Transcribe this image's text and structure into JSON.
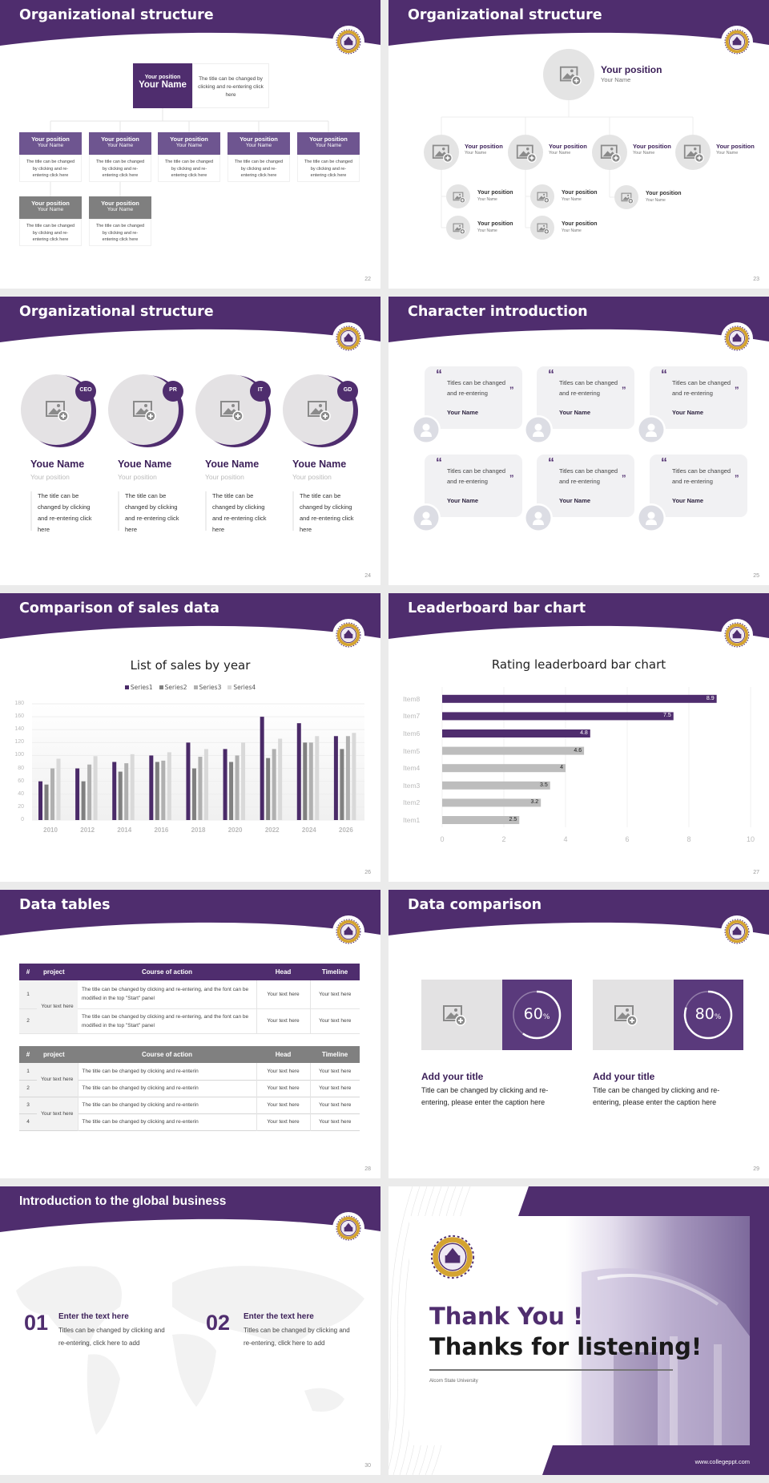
{
  "colors": {
    "purple": "#4f2d6e",
    "dark_purple": "#3b1f58",
    "gray_header": "#808080",
    "series": [
      "#4a2a68",
      "#808080",
      "#b0b0b0",
      "#d9d9d9"
    ]
  },
  "s22": {
    "title": "Organizational structure",
    "page": "22",
    "top": {
      "position": "Your position",
      "name": "Your Name",
      "desc": "The title can be changed by clicking and re-entering click here"
    },
    "boxes": [
      {
        "position": "Your position",
        "name": "Your Name",
        "desc": "The title can be changed by clicking and re-entering click here",
        "style": "purple"
      },
      {
        "position": "Your position",
        "name": "Your Name",
        "desc": "The title can be changed by clicking and re-entering click here",
        "style": "purple"
      },
      {
        "position": "Your position",
        "name": "Your Name",
        "desc": "The title can be changed by clicking and re-entering click here",
        "style": "purple"
      },
      {
        "position": "Your position",
        "name": "Your Name",
        "desc": "The title can be changed by clicking and re-entering click here",
        "style": "purple"
      },
      {
        "position": "Your position",
        "name": "Your Name",
        "desc": "The title can be changed by clicking and re-entering click here",
        "style": "purple"
      },
      {
        "position": "Your position",
        "name": "Your Name",
        "desc": "The title can be changed by clicking and re-entering click here",
        "style": "gray"
      },
      {
        "position": "Your position",
        "name": "Your Name",
        "desc": "The title can be changed by clicking and re-entering click here",
        "style": "gray"
      }
    ]
  },
  "s23": {
    "title": "Organizational structure",
    "page": "23",
    "top": {
      "position": "Your position",
      "name": "Your Name"
    },
    "mid": [
      {
        "position": "Your position",
        "name": "Your Name"
      },
      {
        "position": "Your position",
        "name": "Your Name"
      },
      {
        "position": "Your position",
        "name": "Your Name"
      },
      {
        "position": "Your position",
        "name": "Your Name"
      }
    ],
    "sub": [
      {
        "position": "Your position",
        "name": "Your Name"
      },
      {
        "position": "Your position",
        "name": "Your Name"
      },
      {
        "position": "Your position",
        "name": "Your Name"
      },
      {
        "position": "Your position",
        "name": "Your Name"
      },
      {
        "position": "Your position",
        "name": "Your Name"
      }
    ]
  },
  "s24": {
    "title": "Organizational structure",
    "page": "24",
    "people": [
      {
        "badge": "CEO",
        "name": "Youe Name",
        "position": "Your position",
        "desc": "The title can be changed by clicking and re-entering click here"
      },
      {
        "badge": "PR",
        "name": "Youe Name",
        "position": "Your position",
        "desc": "The title can be changed by clicking and re-entering click here"
      },
      {
        "badge": "IT",
        "name": "Youe Name",
        "position": "Your position",
        "desc": "The title can be changed by clicking and re-entering click here"
      },
      {
        "badge": "GD",
        "name": "Youe Name",
        "position": "Your position",
        "desc": "The title can be changed by clicking and re-entering click here"
      }
    ]
  },
  "s25": {
    "title": "Character introduction",
    "page": "25",
    "open_quote": "“",
    "close_quote": "”",
    "cards": [
      {
        "quote": "Titles can be changed and re-entering",
        "name": "Your Name"
      },
      {
        "quote": "Titles can be changed and re-entering",
        "name": "Your Name"
      },
      {
        "quote": "Titles can be changed and re-entering",
        "name": "Your Name"
      },
      {
        "quote": "Titles can be changed and re-entering",
        "name": "Your Name"
      },
      {
        "quote": "Titles can be changed and re-entering",
        "name": "Your Name"
      },
      {
        "quote": "Titles can be changed and re-entering",
        "name": "Your Name"
      }
    ]
  },
  "s26": {
    "title": "Comparison of sales data",
    "page": "26"
  },
  "s27": {
    "title": "Leaderboard bar chart",
    "page": "27"
  },
  "s28": {
    "title": "Data tables",
    "page": "28",
    "headers": [
      "#",
      "project",
      "Course of action",
      "Head",
      "Timeline"
    ],
    "table1": {
      "project": "Your text here",
      "rows": [
        {
          "n": "1",
          "course": "The title can be changed by clicking and re-entering, and the font can be modified in the top \"Start\" panel",
          "head": "Your text here",
          "timeline": "Your text here"
        },
        {
          "n": "2",
          "course": "The title can be changed by clicking and re-entering, and the font can be modified in the top \"Start\" panel",
          "head": "Your text here",
          "timeline": "Your text here"
        }
      ]
    },
    "table2": {
      "groups": [
        {
          "project": "Your text here",
          "rows": [
            {
              "n": "1",
              "course": "The title can be changed by clicking and re-enterin",
              "head": "Your text here",
              "timeline": "Your text here"
            },
            {
              "n": "2",
              "course": "The title can be changed by clicking and re-enterin",
              "head": "Your text here",
              "timeline": "Your text here"
            }
          ]
        },
        {
          "project": "Your text here",
          "rows": [
            {
              "n": "3",
              "course": "The title can be changed by clicking and re-enterin",
              "head": "Your text here",
              "timeline": "Your text here"
            },
            {
              "n": "4",
              "course": "The title can be changed by clicking and re-enterin",
              "head": "Your text here",
              "timeline": "Your text here"
            }
          ]
        }
      ]
    }
  },
  "s29": {
    "title": "Data comparison",
    "page": "29",
    "items": [
      {
        "percent": 60,
        "value": "60",
        "unit": "%",
        "title": "Add your title",
        "desc": "Title can be changed by clicking and re-entering, please enter the caption here"
      },
      {
        "percent": 80,
        "value": "80",
        "unit": "%",
        "title": "Add your title",
        "desc": "Title can be changed by clicking and re-entering, please enter the caption here"
      }
    ]
  },
  "s30": {
    "title": "Introduction to the global business",
    "page": "30",
    "items": [
      {
        "num": "01",
        "title": "Enter the text here",
        "desc": "Titles can be changed by clicking and re-entering, click here to add"
      },
      {
        "num": "02",
        "title": "Enter the text here",
        "desc": "Titles can be changed by clicking and re-entering, click here to add"
      }
    ]
  },
  "s31": {
    "line1": "Thank You !",
    "line2": "Thanks for listening!",
    "university": "Alcorn State University",
    "url": "www.collegeppt.com"
  },
  "chart_data": [
    {
      "type": "bar",
      "title": "List of sales by year",
      "categories": [
        "2010",
        "2012",
        "2014",
        "2016",
        "2018",
        "2020",
        "2022",
        "2024",
        "2026"
      ],
      "series": [
        {
          "name": "Series1",
          "values": [
            60,
            80,
            90,
            100,
            120,
            110,
            160,
            150,
            130
          ]
        },
        {
          "name": "Series2",
          "values": [
            55,
            60,
            75,
            90,
            80,
            90,
            96,
            120,
            110
          ]
        },
        {
          "name": "Series3",
          "values": [
            80,
            86,
            88,
            92,
            98,
            100,
            110,
            120,
            130
          ]
        },
        {
          "name": "Series4",
          "values": [
            95,
            99,
            102,
            105,
            110,
            120,
            126,
            130,
            135
          ]
        }
      ],
      "yticks": [
        "0",
        "20",
        "40",
        "60",
        "80",
        "100",
        "120",
        "140",
        "160",
        "180"
      ],
      "ylim": [
        0,
        180
      ],
      "legend": "top",
      "grid": true
    },
    {
      "type": "bar",
      "orientation": "horizontal",
      "title": "Rating leaderboard bar chart",
      "categories": [
        "Item1",
        "Item2",
        "Item3",
        "Item4",
        "Item5",
        "Item6",
        "Item7",
        "Item8"
      ],
      "values": [
        2.5,
        3.2,
        3.5,
        4,
        4.6,
        4.8,
        7.5,
        8.9
      ],
      "labels": [
        "2.5",
        "3.2",
        "3.5",
        "4",
        "4.6",
        "4.8",
        "7.5",
        "8.9"
      ],
      "highlight": [
        "Item6",
        "Item7",
        "Item8"
      ],
      "xticks": [
        "0",
        "2",
        "4",
        "6",
        "8",
        "10"
      ],
      "xlim": [
        0,
        10
      ],
      "grid": true
    }
  ]
}
